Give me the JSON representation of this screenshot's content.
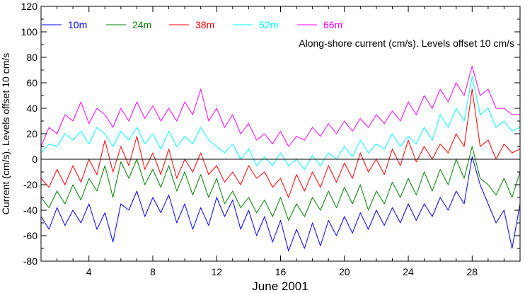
{
  "chart_data": {
    "type": "line",
    "title": "",
    "annotation": "Along-shore current (cm/s). Levels offset 10 cm/s",
    "xlabel": "June 2001",
    "ylabel": "Current (cm/s). Levels offset 10 cm/s",
    "xlim": [
      1,
      31
    ],
    "ylim": [
      -80,
      120
    ],
    "x_start": 1,
    "x_step": 0.5,
    "x_ticks": [
      4,
      8,
      12,
      16,
      20,
      24,
      28
    ],
    "x_tick_labels": [
      "4",
      "8",
      "12",
      "16",
      "20",
      "24",
      "28"
    ],
    "y_ticks": [
      -80,
      -60,
      -40,
      -20,
      0,
      20,
      40,
      60,
      80,
      100,
      120
    ],
    "y_tick_labels": [
      "-80",
      "-60",
      "-40",
      "-20",
      "0",
      "20",
      "40",
      "60",
      "80",
      "100",
      "120"
    ],
    "zero_line": true,
    "legend_placement": "top-left",
    "series": [
      {
        "name": "10m",
        "color": "#0000ff",
        "values": [
          -45,
          -55,
          -38,
          -52,
          -40,
          -50,
          -35,
          -55,
          -42,
          -65,
          -35,
          -40,
          -25,
          -45,
          -30,
          -42,
          -28,
          -50,
          -35,
          -55,
          -38,
          -52,
          -30,
          -45,
          -32,
          -55,
          -40,
          -60,
          -45,
          -65,
          -48,
          -72,
          -55,
          -70,
          -50,
          -68,
          -48,
          -60,
          -45,
          -58,
          -42,
          -55,
          -40,
          -52,
          -38,
          -50,
          -35,
          -48,
          -35,
          -45,
          -30,
          -40,
          -25,
          -35,
          2,
          -20,
          -35,
          -50,
          -40,
          -70,
          -35
        ]
      },
      {
        "name": "24m",
        "color": "#008000",
        "values": [
          -30,
          -38,
          -25,
          -35,
          -20,
          -32,
          -15,
          -25,
          -5,
          -30,
          -2,
          -15,
          0,
          -20,
          -8,
          -22,
          -5,
          -25,
          -10,
          -28,
          -12,
          -30,
          -15,
          -35,
          -25,
          -38,
          -30,
          -42,
          -32,
          -45,
          -30,
          -48,
          -35,
          -45,
          -30,
          -40,
          -25,
          -38,
          -22,
          -35,
          -20,
          -40,
          -25,
          -35,
          -18,
          -30,
          -15,
          -28,
          -10,
          -25,
          -8,
          -20,
          0,
          -15,
          10,
          -15,
          -20,
          -28,
          -15,
          -30,
          -10
        ]
      },
      {
        "name": "38m",
        "color": "#ff0000",
        "values": [
          -15,
          -22,
          -8,
          -20,
          -5,
          -18,
          0,
          -12,
          15,
          -10,
          10,
          -5,
          18,
          -8,
          5,
          -12,
          8,
          -15,
          0,
          -10,
          5,
          -12,
          -5,
          -18,
          -10,
          -20,
          -5,
          -15,
          -10,
          -22,
          -15,
          -30,
          -12,
          -25,
          -10,
          -22,
          -5,
          -18,
          -3,
          -15,
          5,
          -10,
          0,
          -12,
          8,
          -5,
          15,
          -2,
          10,
          0,
          12,
          5,
          20,
          10,
          55,
          10,
          15,
          0,
          12,
          5,
          8
        ]
      },
      {
        "name": "52m",
        "color": "#00ffff",
        "values": [
          5,
          12,
          10,
          20,
          15,
          22,
          12,
          25,
          20,
          10,
          22,
          15,
          25,
          12,
          20,
          8,
          22,
          10,
          18,
          12,
          25,
          15,
          10,
          5,
          12,
          0,
          8,
          -5,
          2,
          -5,
          5,
          -5,
          0,
          -8,
          3,
          -5,
          5,
          0,
          10,
          2,
          15,
          5,
          12,
          8,
          20,
          10,
          18,
          12,
          25,
          15,
          35,
          25,
          40,
          30,
          65,
          35,
          40,
          25,
          30,
          22,
          25
        ]
      },
      {
        "name": "66m",
        "color": "#ff00ff",
        "values": [
          10,
          25,
          20,
          35,
          30,
          45,
          28,
          40,
          35,
          25,
          40,
          30,
          45,
          32,
          42,
          30,
          40,
          30,
          45,
          35,
          55,
          30,
          40,
          25,
          35,
          20,
          28,
          15,
          20,
          12,
          22,
          10,
          18,
          15,
          25,
          18,
          28,
          20,
          30,
          22,
          32,
          25,
          35,
          28,
          38,
          30,
          45,
          35,
          50,
          40,
          55,
          45,
          60,
          50,
          73,
          50,
          55,
          40,
          40,
          35,
          35
        ]
      }
    ]
  }
}
